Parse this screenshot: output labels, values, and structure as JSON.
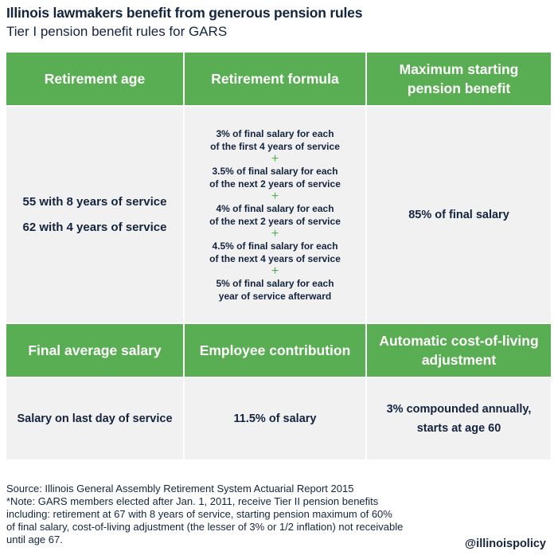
{
  "title": "Illinois lawmakers benefit from generous pension rules",
  "subtitle": "Tier I pension benefit rules for GARS",
  "table": {
    "top_headers": [
      "Retirement age",
      "Retirement formula",
      "Maximum starting pension benefit"
    ],
    "retirement_age": [
      "55 with 8 years of service",
      "62 with 4 years of service"
    ],
    "formula_steps": [
      [
        "3% of final salary for each",
        "of the first 4 years of service"
      ],
      [
        "3.5% of final salary for each",
        "of the next 2 years of service"
      ],
      [
        "4% of final salary for each",
        "of the next 2 years of service"
      ],
      [
        "4.5% of final salary for each",
        "of the next 4 years of service"
      ],
      [
        "5% of final salary for each",
        "year of service afterward"
      ]
    ],
    "plus_symbol": "+",
    "max_benefit": "85% of final salary",
    "bottom_headers": [
      "Final average salary",
      "Employee contribution",
      "Automatic cost-of-living adjustment"
    ],
    "final_average_salary": "Salary on last day of service",
    "employee_contribution": "11.5% of salary",
    "cola": [
      "3% compounded annually,",
      "starts at age 60"
    ]
  },
  "footer": {
    "source": "Source: Illinois General Assembly Retirement System Actuarial Report 2015",
    "note_lines": [
      "*Note: GARS members elected after Jan. 1, 2011, receive Tier II pension benefits",
      "including: retirement at 67 with 8 years of service, starting pension maximum of 60%",
      "of final salary, cost-of-living adjustment (the lesser of 3% or 1/2 inflation) not receivable",
      "until age 67."
    ],
    "handle": "@illinoispolicy"
  },
  "colors": {
    "header_green": "#59ad52",
    "body_gray": "#f1f1f1",
    "text_navy": "#14243f"
  }
}
